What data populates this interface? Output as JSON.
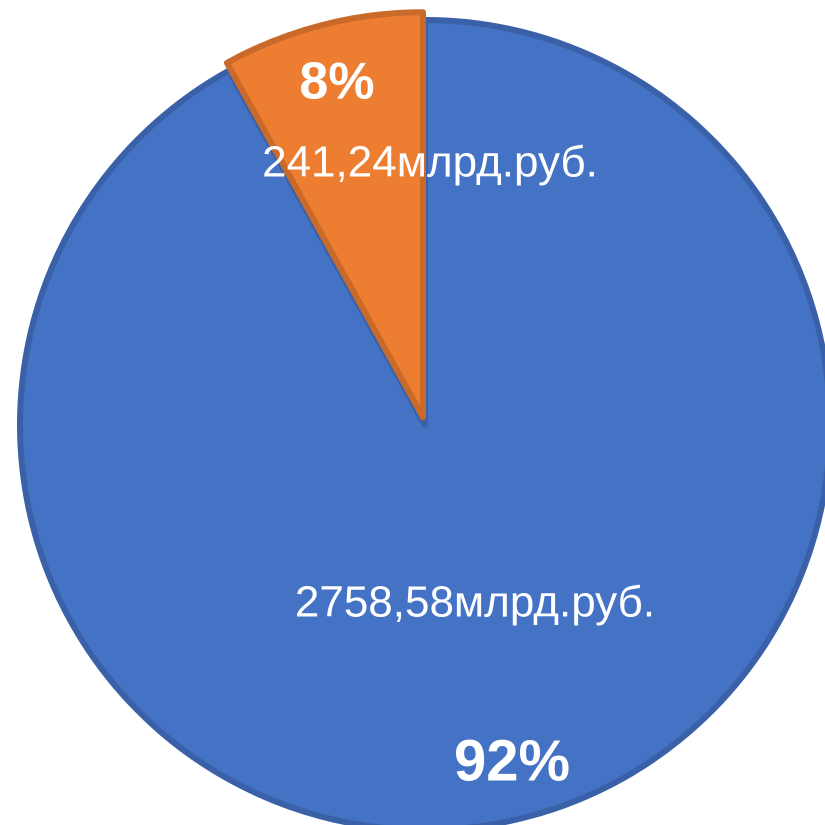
{
  "chart_data": {
    "type": "pie",
    "values": [
      2758.58,
      241.24
    ],
    "value_labels": [
      "2758,58млрд.руб.",
      "241,24млрд.руб."
    ],
    "percent_labels": [
      "92%",
      "8%"
    ],
    "colors": [
      "#4472c4",
      "#ed7d31"
    ]
  }
}
